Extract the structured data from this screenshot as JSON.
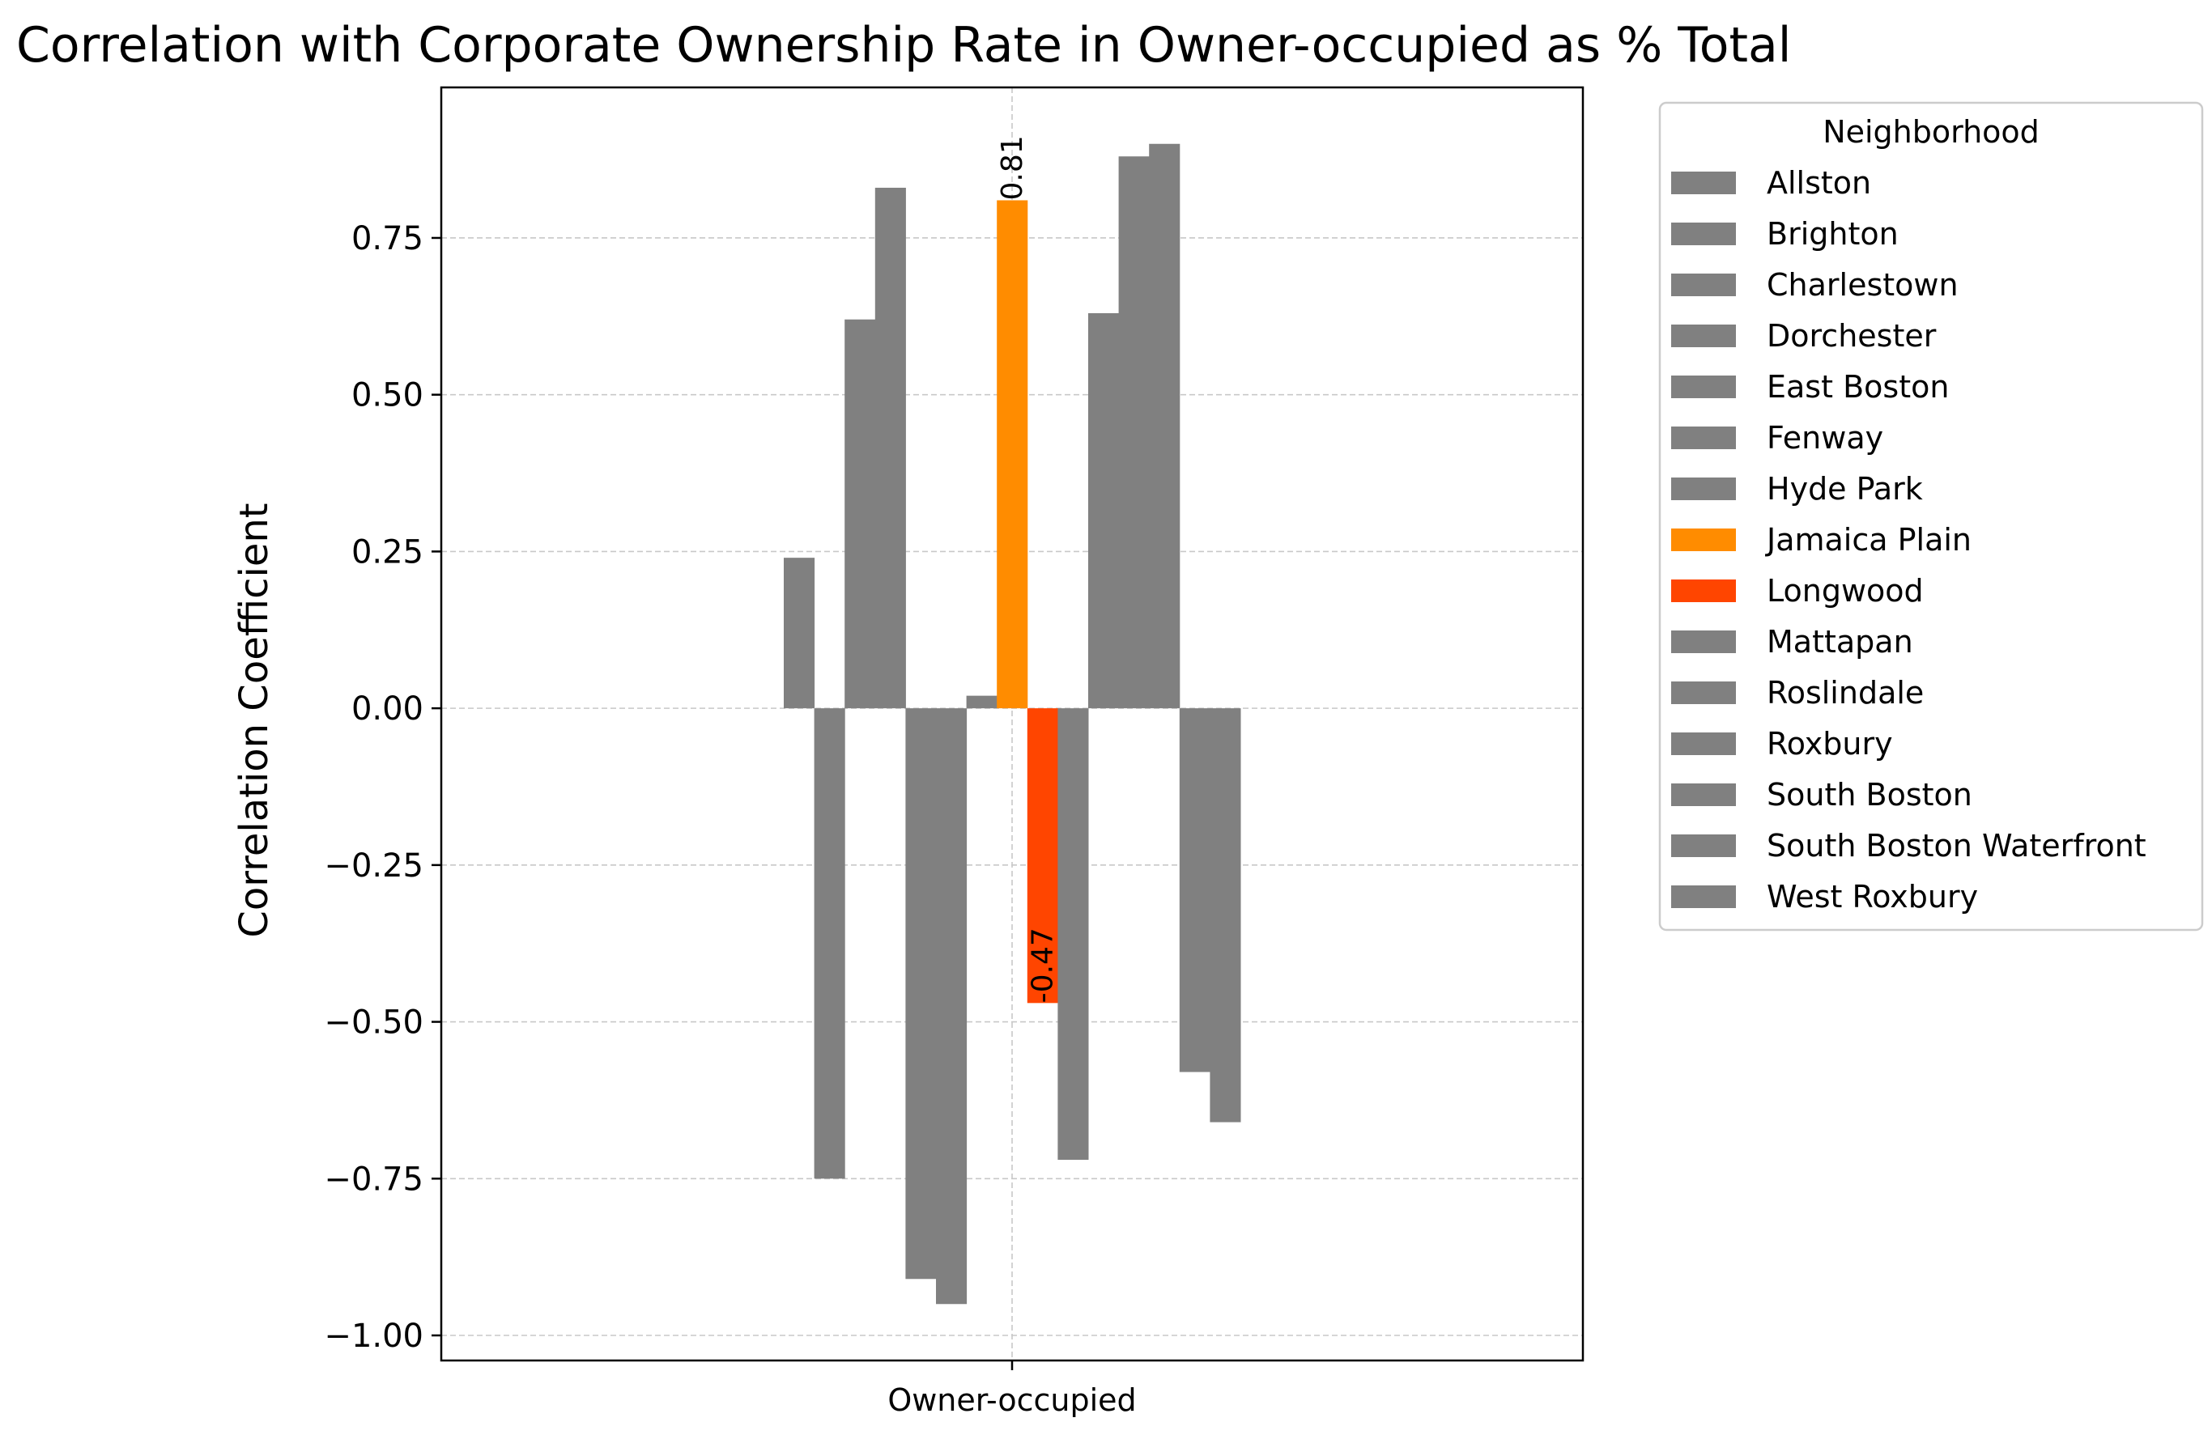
{
  "chart_data": {
    "type": "bar",
    "title": "Correlation with Corporate Ownership Rate in Owner-occupied as % Total",
    "xlabel": "",
    "ylabel": "Correlation Coefficient",
    "categories": [
      "Owner-occupied"
    ],
    "ylim": [
      -1.04,
      0.99
    ],
    "yticks": [
      -1.0,
      -0.75,
      -0.5,
      -0.25,
      0.0,
      0.25,
      0.5,
      0.75
    ],
    "ytick_labels": [
      "−1.00",
      "−0.75",
      "−0.50",
      "−0.25",
      "0.00",
      "0.25",
      "0.50",
      "0.75"
    ],
    "grid": true,
    "legend": {
      "title": "Neighborhood",
      "placement": "outside-upper-right"
    },
    "series": [
      {
        "name": "Allston",
        "values": [
          0.24
        ],
        "color": "#808080"
      },
      {
        "name": "Brighton",
        "values": [
          -0.75
        ],
        "color": "#808080"
      },
      {
        "name": "Charlestown",
        "values": [
          0.62
        ],
        "color": "#808080"
      },
      {
        "name": "Dorchester",
        "values": [
          0.83
        ],
        "color": "#808080"
      },
      {
        "name": "East Boston",
        "values": [
          -0.91
        ],
        "color": "#808080"
      },
      {
        "name": "Fenway",
        "values": [
          -0.95
        ],
        "color": "#808080"
      },
      {
        "name": "Hyde Park",
        "values": [
          0.02
        ],
        "color": "#808080"
      },
      {
        "name": "Jamaica Plain",
        "values": [
          0.81
        ],
        "color": "#ff8c00",
        "label": "0.81"
      },
      {
        "name": "Longwood",
        "values": [
          -0.47
        ],
        "color": "#ff4500",
        "label": "-0.47"
      },
      {
        "name": "Mattapan",
        "values": [
          -0.72
        ],
        "color": "#808080"
      },
      {
        "name": "Roslindale",
        "values": [
          0.63
        ],
        "color": "#808080"
      },
      {
        "name": "Roxbury",
        "values": [
          0.88
        ],
        "color": "#808080"
      },
      {
        "name": "South Boston",
        "values": [
          0.9
        ],
        "color": "#808080"
      },
      {
        "name": "South Boston Waterfront",
        "values": [
          -0.58
        ],
        "color": "#808080"
      },
      {
        "name": "West Roxbury",
        "values": [
          -0.66
        ],
        "color": "#808080"
      }
    ]
  }
}
